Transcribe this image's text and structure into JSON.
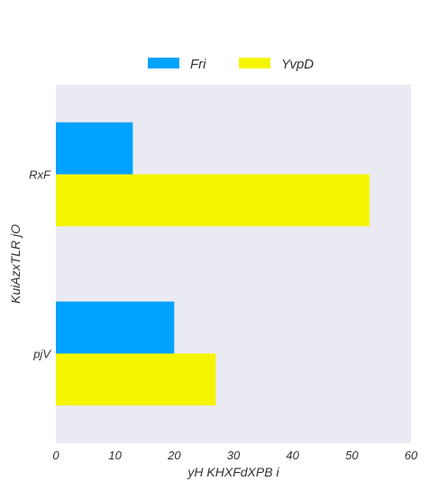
{
  "chart_data": {
    "type": "bar",
    "orientation": "horizontal",
    "categories": [
      "RxF",
      "pjV"
    ],
    "series": [
      {
        "name": "Fri",
        "color": "#00a2ff",
        "values": [
          13,
          20
        ]
      },
      {
        "name": "YvpD",
        "color": "#f5f500",
        "values": [
          53,
          27
        ]
      }
    ],
    "xlabel": "yH KHXFdXPB i",
    "ylabel": "KuiAzxTLR jO",
    "xlim": [
      0,
      60
    ],
    "xticks": [
      0,
      10,
      20,
      30,
      40,
      50,
      60
    ],
    "grid": false,
    "legend_position": "top-center",
    "background": "#eaeaf2"
  }
}
